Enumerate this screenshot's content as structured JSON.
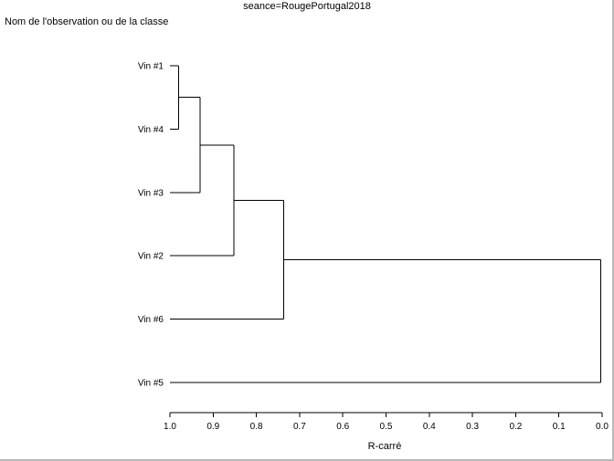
{
  "chart_data": {
    "type": "dendrogram",
    "title": "seance=RougePortugal2018",
    "ylabel": "Nom de l'observation ou de la classe",
    "xlabel": "R-carré",
    "xlim": [
      1.0,
      0.0
    ],
    "xticks": [
      "1.0",
      "0.9",
      "0.8",
      "0.7",
      "0.6",
      "0.5",
      "0.4",
      "0.3",
      "0.2",
      "0.1",
      "0.0"
    ],
    "leaves": [
      "Vin #1",
      "Vin #4",
      "Vin #3",
      "Vin #2",
      "Vin #6",
      "Vin #5"
    ],
    "merges": [
      {
        "left": "Vin #1",
        "right": "Vin #4",
        "r_squared": 0.98
      },
      {
        "left": "Vin #1+Vin #4",
        "right": "Vin #3",
        "r_squared": 0.93
      },
      {
        "left": "Vin #1+Vin #4+Vin #3",
        "right": "Vin #2",
        "r_squared": 0.852
      },
      {
        "left": "Vin #1+Vin #4+Vin #3+Vin #2",
        "right": "Vin #6",
        "r_squared": 0.737
      },
      {
        "left": "Vin #1+Vin #4+Vin #3+Vin #2+Vin #6",
        "right": "Vin #5",
        "r_squared": 0.003
      }
    ],
    "grid": false,
    "legend": "none"
  }
}
